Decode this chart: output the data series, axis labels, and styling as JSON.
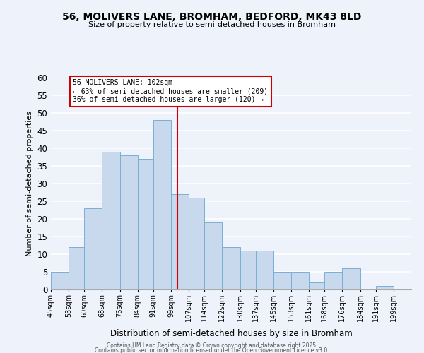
{
  "title_line1": "56, MOLIVERS LANE, BROMHAM, BEDFORD, MK43 8LD",
  "title_line2": "Size of property relative to semi-detached houses in Bromham",
  "xlabel": "Distribution of semi-detached houses by size in Bromham",
  "ylabel": "Number of semi-detached properties",
  "bin_labels": [
    "45sqm",
    "53sqm",
    "60sqm",
    "68sqm",
    "76sqm",
    "84sqm",
    "91sqm",
    "99sqm",
    "107sqm",
    "114sqm",
    "122sqm",
    "130sqm",
    "137sqm",
    "145sqm",
    "153sqm",
    "161sqm",
    "168sqm",
    "176sqm",
    "184sqm",
    "191sqm",
    "199sqm"
  ],
  "bin_edges": [
    45,
    53,
    60,
    68,
    76,
    84,
    91,
    99,
    107,
    114,
    122,
    130,
    137,
    145,
    153,
    161,
    168,
    176,
    184,
    191,
    199
  ],
  "counts": [
    5,
    12,
    23,
    39,
    38,
    37,
    48,
    27,
    26,
    19,
    12,
    11,
    11,
    5,
    5,
    2,
    5,
    6,
    0,
    1
  ],
  "bar_color": "#c8d9ee",
  "bar_edge_color": "#7bafd4",
  "vline_x": 102,
  "vline_color": "#cc0000",
  "annotation_text": "56 MOLIVERS LANE: 102sqm\n← 63% of semi-detached houses are smaller (209)\n36% of semi-detached houses are larger (120) →",
  "annotation_box_color": "#ffffff",
  "annotation_box_edge": "#cc0000",
  "ylim": [
    0,
    60
  ],
  "yticks": [
    0,
    5,
    10,
    15,
    20,
    25,
    30,
    35,
    40,
    45,
    50,
    55,
    60
  ],
  "background_color": "#eef2fb",
  "grid_color": "#ffffff",
  "footer_line1": "Contains HM Land Registry data © Crown copyright and database right 2025.",
  "footer_line2": "Contains public sector information licensed under the Open Government Licence v3.0."
}
